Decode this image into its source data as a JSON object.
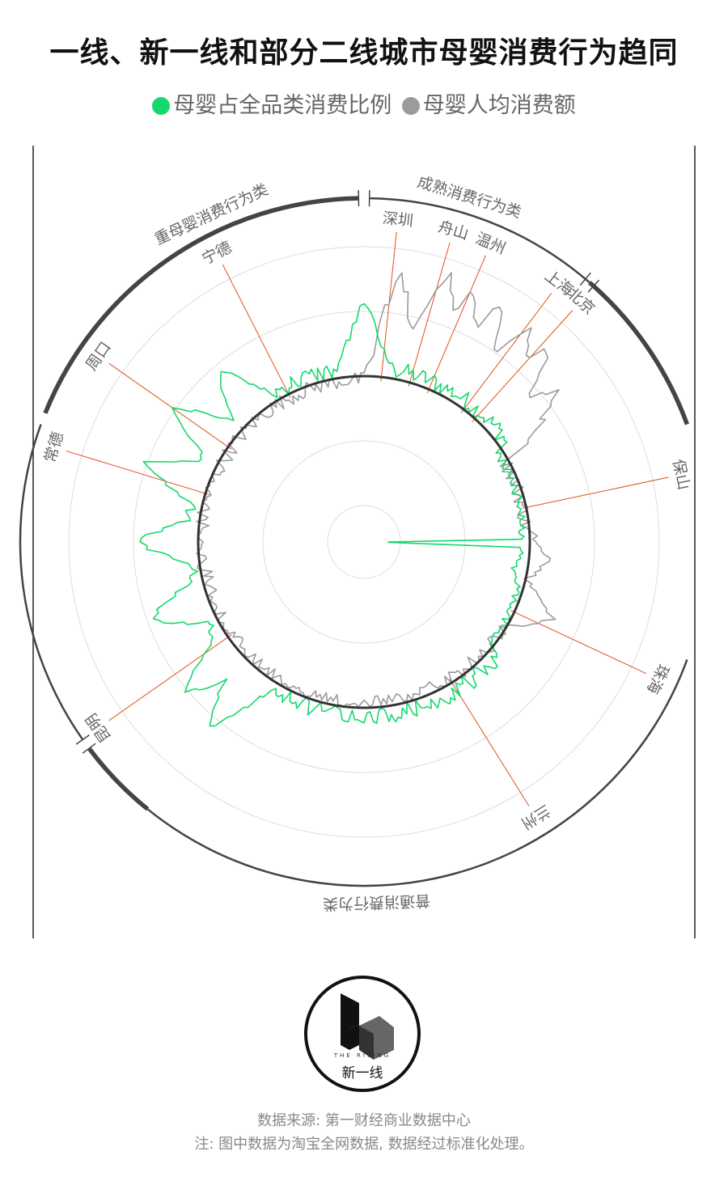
{
  "title": "一线、新一线和部分二线城市母婴消费行为趋同",
  "legend": [
    {
      "label": "母婴占全品类消费比例",
      "color": "#15d86c"
    },
    {
      "label": "母婴人均消费额",
      "color": "#9b9b9b"
    }
  ],
  "logo": {
    "tag": "THE RISING",
    "name": "新一线"
  },
  "footer": {
    "source": "数据来源: 第一财经商业数据中心",
    "note": "注: 图中数据为淘宝全网数据, 数据经过标准化处理。"
  },
  "colors": {
    "green": "#15d86c",
    "gray": "#9b9b9b",
    "leader": "#e2501c",
    "ring": "#333333",
    "grid": "#dddddd"
  },
  "chart_data": {
    "type": "radial-line",
    "segments": [
      {
        "label": "成熟消费行为类"
      },
      {
        "label": "重母婴消费行为类"
      },
      {
        "label": "重母婴消费行为类"
      },
      {
        "label": "普通消费行为类"
      }
    ],
    "city_labels": [
      {
        "name": "深圳",
        "angle": 6
      },
      {
        "name": "舟山",
        "angle": 16
      },
      {
        "name": "温州",
        "angle": 23
      },
      {
        "name": "上海",
        "angle": 37
      },
      {
        "name": "北京",
        "angle": 42
      },
      {
        "name": "保山",
        "angle": 78
      },
      {
        "name": "珠海",
        "angle": 115
      },
      {
        "name": "兰州",
        "angle": 148
      },
      {
        "name": "昆明",
        "angle": 235
      },
      {
        "name": "常德",
        "angle": 287
      },
      {
        "name": "周口",
        "angle": 305
      },
      {
        "name": "宁德",
        "angle": 333
      }
    ],
    "peaks_green": [
      {
        "angle": 0,
        "value": 0.88
      },
      {
        "angle": 4,
        "value": 0.22
      },
      {
        "angle": 87,
        "value": 0.2
      },
      {
        "angle": 93,
        "value": 0.2
      },
      {
        "angle": 100,
        "value": 0.3
      },
      {
        "angle": 220,
        "value": 0.88
      },
      {
        "angle": 230,
        "value": 0.82
      },
      {
        "angle": 250,
        "value": 0.74
      },
      {
        "angle": 270,
        "value": 0.72
      },
      {
        "angle": 290,
        "value": 0.76
      },
      {
        "angle": 305,
        "value": 0.78
      },
      {
        "angle": 320,
        "value": 0.72
      }
    ],
    "peaks_gray": [
      {
        "angle": 8,
        "value": 0.7
      },
      {
        "angle": 18,
        "value": 0.78
      },
      {
        "angle": 24,
        "value": 0.76
      },
      {
        "angle": 30,
        "value": 0.74
      },
      {
        "angle": 38,
        "value": 0.76
      },
      {
        "angle": 44,
        "value": 0.72
      },
      {
        "angle": 52,
        "value": 0.56
      },
      {
        "angle": 95,
        "value": 0.3
      },
      {
        "angle": 112,
        "value": 0.54
      }
    ],
    "note_scale": "values normalized 0-1"
  }
}
